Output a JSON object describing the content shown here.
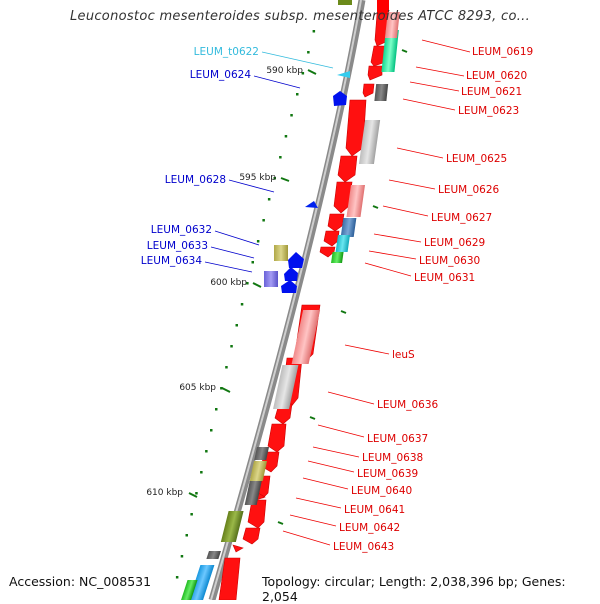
{
  "title": "Leuconostoc mesenteroides subsp. mesenteroides ATCC 8293, co...",
  "footer": {
    "accession": "Accession: NC_008531",
    "summary": "Topology: circular; Length: 2,038,396 bp; Genes: 2,054"
  },
  "colors": {
    "backbone": "#8c8c8c",
    "cds": "#ff0000",
    "reverse_label": "#0000cc",
    "trna_label": "#33bbdd",
    "forward_label": "#dd0000",
    "tick": "#007700"
  },
  "ruler_ticks": [
    {
      "label": "590 kbp"
    },
    {
      "label": "595 kbp"
    },
    {
      "label": "600 kbp"
    },
    {
      "label": "605 kbp"
    },
    {
      "label": "610 kbp"
    }
  ],
  "gene_labels": {
    "left": [
      {
        "text": "LEUM_t0622",
        "kind": "trna"
      },
      {
        "text": "LEUM_0624",
        "kind": "reverse"
      },
      {
        "text": "LEUM_0628",
        "kind": "reverse"
      },
      {
        "text": "LEUM_0632",
        "kind": "reverse"
      },
      {
        "text": "LEUM_0633",
        "kind": "reverse"
      },
      {
        "text": "LEUM_0634",
        "kind": "reverse"
      }
    ],
    "right": [
      {
        "text": "LEUM_0619"
      },
      {
        "text": "LEUM_0620"
      },
      {
        "text": "LEUM_0621"
      },
      {
        "text": "LEUM_0623"
      },
      {
        "text": "LEUM_0625"
      },
      {
        "text": "LEUM_0626"
      },
      {
        "text": "LEUM_0627"
      },
      {
        "text": "LEUM_0629"
      },
      {
        "text": "LEUM_0630"
      },
      {
        "text": "LEUM_0631"
      },
      {
        "text": "leuS"
      },
      {
        "text": "LEUM_0636"
      },
      {
        "text": "LEUM_0637"
      },
      {
        "text": "LEUM_0638"
      },
      {
        "text": "LEUM_0639"
      },
      {
        "text": "LEUM_0640"
      },
      {
        "text": "LEUM_0641"
      },
      {
        "text": "LEUM_0642"
      },
      {
        "text": "LEUM_0643"
      }
    ]
  }
}
